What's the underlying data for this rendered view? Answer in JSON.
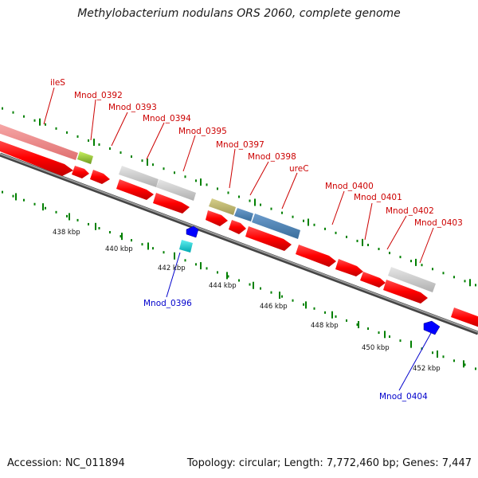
{
  "title": "Methylobacterium nodulans ORS 2060, complete genome",
  "accession": "Accession: NC_011894",
  "topology": "Topology: circular; Length: 7,772,460 bp; Genes: 7,447",
  "colors": {
    "gene_red": "#ff0000",
    "gene_dark_red": "#c80000",
    "label_red": "#cc0000",
    "label_blue": "#0000cc",
    "tick_green": "#008000",
    "axis_gray": "#7a7a7a",
    "pink": "#f08080",
    "gray_gene": "#c8c8c8",
    "olive": "#bdb76b",
    "steelblue": "#4682b4",
    "yellowgreen": "#9acd32",
    "cyan": "#00ced1",
    "blue": "#0000ff"
  },
  "scale_labels": [
    "438 kbp",
    "440 kbp",
    "442 kbp",
    "444 kbp",
    "446 kbp",
    "448 kbp",
    "450 kbp",
    "452 kbp"
  ],
  "gene_labels": [
    {
      "text": "ileS",
      "strand": "top"
    },
    {
      "text": "Mnod_0392",
      "strand": "top"
    },
    {
      "text": "Mnod_0393",
      "strand": "top"
    },
    {
      "text": "Mnod_0394",
      "strand": "top"
    },
    {
      "text": "Mnod_0395",
      "strand": "top"
    },
    {
      "text": "Mnod_0397",
      "strand": "top"
    },
    {
      "text": "Mnod_0398",
      "strand": "top"
    },
    {
      "text": "ureC",
      "strand": "top"
    },
    {
      "text": "Mnod_0400",
      "strand": "top"
    },
    {
      "text": "Mnod_0401",
      "strand": "top"
    },
    {
      "text": "Mnod_0402",
      "strand": "top"
    },
    {
      "text": "Mnod_0403",
      "strand": "top"
    },
    {
      "text": "Mnod_0396",
      "strand": "bottom"
    },
    {
      "text": "Mnod_0404",
      "strand": "bottom"
    }
  ]
}
